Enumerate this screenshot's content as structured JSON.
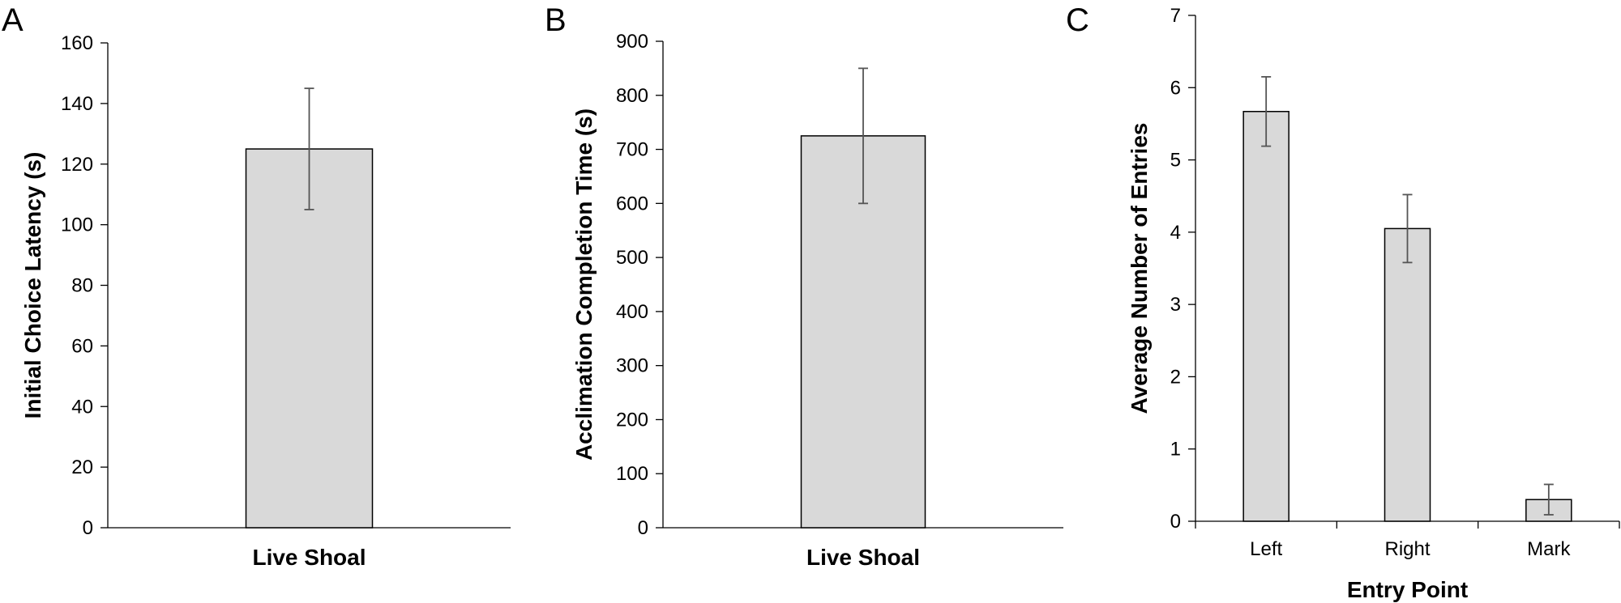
{
  "chart_data": [
    {
      "panel": "A",
      "type": "bar",
      "title": "",
      "xlabel": "",
      "ylabel": "Initial Choice Latency (s)",
      "categories": [
        "Live Shoal"
      ],
      "values": [
        125
      ],
      "error": [
        20
      ],
      "ylim": [
        0,
        160
      ],
      "yticks": [
        0,
        20,
        40,
        60,
        80,
        100,
        120,
        140,
        160
      ],
      "bold_categories": true,
      "grid": false,
      "bar_color": "#d9d9d9"
    },
    {
      "panel": "B",
      "type": "bar",
      "title": "",
      "xlabel": "",
      "ylabel": "Acclimation  Completion Time (s)",
      "categories": [
        "Live Shoal"
      ],
      "values": [
        725
      ],
      "error": [
        125
      ],
      "ylim": [
        0,
        900
      ],
      "yticks": [
        0,
        100,
        200,
        300,
        400,
        500,
        600,
        700,
        800,
        900
      ],
      "bold_categories": true,
      "grid": false,
      "bar_color": "#d9d9d9"
    },
    {
      "panel": "C",
      "type": "bar",
      "title": "",
      "xlabel": "Entry Point",
      "ylabel": "Average Number of Entries",
      "categories": [
        "Left",
        "Right",
        "Mark"
      ],
      "values": [
        5.67,
        4.05,
        0.3
      ],
      "error": [
        0.48,
        0.47,
        0.21
      ],
      "ylim": [
        0,
        7
      ],
      "yticks": [
        0,
        1,
        2,
        3,
        4,
        5,
        6,
        7
      ],
      "bold_categories": false,
      "grid": false,
      "bar_color": "#d9d9d9"
    }
  ]
}
